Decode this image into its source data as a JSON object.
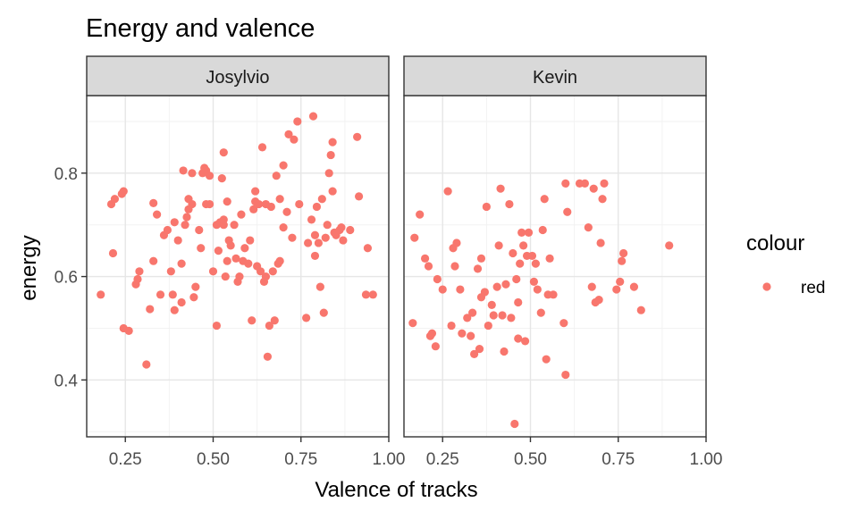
{
  "chart_data": {
    "type": "scatter",
    "title": "Energy and valence",
    "xlabel": "Valence of tracks",
    "ylabel": "energy",
    "xlim": [
      0.14,
      1.0
    ],
    "ylim": [
      0.29,
      0.95
    ],
    "x_ticks": [
      0.25,
      0.5,
      0.75,
      1.0
    ],
    "x_tick_labels": [
      "0.25",
      "0.50",
      "0.75",
      "1.00"
    ],
    "y_ticks": [
      0.4,
      0.6,
      0.8
    ],
    "y_tick_labels": [
      "0.4",
      "0.6",
      "0.8"
    ],
    "grid": true,
    "legend": {
      "title": "colour",
      "position": "right",
      "entries": [
        {
          "label": "red",
          "color": "#F8766D"
        }
      ]
    },
    "point_color": "#F8766D",
    "panels": [
      {
        "name": "Josylvio",
        "points": [
          [
            0.18,
            0.565
          ],
          [
            0.215,
            0.645
          ],
          [
            0.21,
            0.74
          ],
          [
            0.22,
            0.75
          ],
          [
            0.24,
            0.76
          ],
          [
            0.245,
            0.765
          ],
          [
            0.245,
            0.5
          ],
          [
            0.26,
            0.495
          ],
          [
            0.28,
            0.585
          ],
          [
            0.285,
            0.595
          ],
          [
            0.29,
            0.61
          ],
          [
            0.31,
            0.43
          ],
          [
            0.32,
            0.537
          ],
          [
            0.33,
            0.63
          ],
          [
            0.33,
            0.742
          ],
          [
            0.34,
            0.72
          ],
          [
            0.35,
            0.565
          ],
          [
            0.36,
            0.68
          ],
          [
            0.37,
            0.69
          ],
          [
            0.38,
            0.61
          ],
          [
            0.385,
            0.565
          ],
          [
            0.39,
            0.535
          ],
          [
            0.39,
            0.705
          ],
          [
            0.4,
            0.67
          ],
          [
            0.41,
            0.55
          ],
          [
            0.41,
            0.625
          ],
          [
            0.415,
            0.805
          ],
          [
            0.42,
            0.7
          ],
          [
            0.425,
            0.715
          ],
          [
            0.43,
            0.73
          ],
          [
            0.43,
            0.75
          ],
          [
            0.44,
            0.74
          ],
          [
            0.44,
            0.8
          ],
          [
            0.445,
            0.56
          ],
          [
            0.45,
            0.58
          ],
          [
            0.46,
            0.69
          ],
          [
            0.465,
            0.655
          ],
          [
            0.47,
            0.8
          ],
          [
            0.475,
            0.81
          ],
          [
            0.48,
            0.74
          ],
          [
            0.48,
            0.805
          ],
          [
            0.49,
            0.74
          ],
          [
            0.49,
            0.795
          ],
          [
            0.5,
            0.61
          ],
          [
            0.51,
            0.7
          ],
          [
            0.51,
            0.505
          ],
          [
            0.515,
            0.65
          ],
          [
            0.52,
            0.705
          ],
          [
            0.525,
            0.79
          ],
          [
            0.53,
            0.7
          ],
          [
            0.53,
            0.71
          ],
          [
            0.53,
            0.84
          ],
          [
            0.535,
            0.6
          ],
          [
            0.54,
            0.63
          ],
          [
            0.54,
            0.745
          ],
          [
            0.545,
            0.67
          ],
          [
            0.55,
            0.66
          ],
          [
            0.56,
            0.7
          ],
          [
            0.565,
            0.635
          ],
          [
            0.57,
            0.59
          ],
          [
            0.575,
            0.6
          ],
          [
            0.58,
            0.72
          ],
          [
            0.585,
            0.63
          ],
          [
            0.59,
            0.655
          ],
          [
            0.6,
            0.625
          ],
          [
            0.605,
            0.67
          ],
          [
            0.61,
            0.515
          ],
          [
            0.615,
            0.73
          ],
          [
            0.62,
            0.765
          ],
          [
            0.62,
            0.745
          ],
          [
            0.625,
            0.62
          ],
          [
            0.63,
            0.74
          ],
          [
            0.635,
            0.61
          ],
          [
            0.64,
            0.85
          ],
          [
            0.645,
            0.59
          ],
          [
            0.65,
            0.6
          ],
          [
            0.65,
            0.74
          ],
          [
            0.655,
            0.445
          ],
          [
            0.66,
            0.505
          ],
          [
            0.665,
            0.735
          ],
          [
            0.67,
            0.61
          ],
          [
            0.675,
            0.515
          ],
          [
            0.68,
            0.795
          ],
          [
            0.685,
            0.625
          ],
          [
            0.69,
            0.63
          ],
          [
            0.69,
            0.75
          ],
          [
            0.7,
            0.695
          ],
          [
            0.7,
            0.815
          ],
          [
            0.71,
            0.725
          ],
          [
            0.715,
            0.875
          ],
          [
            0.725,
            0.675
          ],
          [
            0.73,
            0.865
          ],
          [
            0.74,
            0.9
          ],
          [
            0.745,
            0.74
          ],
          [
            0.765,
            0.52
          ],
          [
            0.77,
            0.665
          ],
          [
            0.78,
            0.71
          ],
          [
            0.785,
            0.91
          ],
          [
            0.79,
            0.68
          ],
          [
            0.79,
            0.64
          ],
          [
            0.795,
            0.735
          ],
          [
            0.8,
            0.665
          ],
          [
            0.805,
            0.58
          ],
          [
            0.81,
            0.75
          ],
          [
            0.815,
            0.53
          ],
          [
            0.82,
            0.675
          ],
          [
            0.825,
            0.7
          ],
          [
            0.83,
            0.8
          ],
          [
            0.835,
            0.835
          ],
          [
            0.84,
            0.86
          ],
          [
            0.84,
            0.765
          ],
          [
            0.845,
            0.685
          ],
          [
            0.85,
            0.68
          ],
          [
            0.86,
            0.69
          ],
          [
            0.865,
            0.695
          ],
          [
            0.87,
            0.67
          ],
          [
            0.89,
            0.69
          ],
          [
            0.91,
            0.87
          ],
          [
            0.915,
            0.755
          ],
          [
            0.935,
            0.565
          ],
          [
            0.94,
            0.655
          ],
          [
            0.955,
            0.565
          ]
        ]
      },
      {
        "name": "Kevin",
        "points": [
          [
            0.165,
            0.51
          ],
          [
            0.17,
            0.675
          ],
          [
            0.185,
            0.72
          ],
          [
            0.2,
            0.635
          ],
          [
            0.21,
            0.62
          ],
          [
            0.215,
            0.485
          ],
          [
            0.22,
            0.49
          ],
          [
            0.23,
            0.465
          ],
          [
            0.235,
            0.595
          ],
          [
            0.25,
            0.575
          ],
          [
            0.265,
            0.765
          ],
          [
            0.275,
            0.505
          ],
          [
            0.28,
            0.655
          ],
          [
            0.285,
            0.62
          ],
          [
            0.29,
            0.665
          ],
          [
            0.3,
            0.575
          ],
          [
            0.305,
            0.49
          ],
          [
            0.32,
            0.52
          ],
          [
            0.33,
            0.485
          ],
          [
            0.335,
            0.53
          ],
          [
            0.34,
            0.45
          ],
          [
            0.35,
            0.615
          ],
          [
            0.355,
            0.46
          ],
          [
            0.36,
            0.635
          ],
          [
            0.36,
            0.56
          ],
          [
            0.37,
            0.57
          ],
          [
            0.375,
            0.735
          ],
          [
            0.38,
            0.505
          ],
          [
            0.39,
            0.545
          ],
          [
            0.395,
            0.525
          ],
          [
            0.405,
            0.58
          ],
          [
            0.41,
            0.66
          ],
          [
            0.415,
            0.77
          ],
          [
            0.42,
            0.525
          ],
          [
            0.425,
            0.455
          ],
          [
            0.43,
            0.585
          ],
          [
            0.44,
            0.74
          ],
          [
            0.445,
            0.52
          ],
          [
            0.45,
            0.645
          ],
          [
            0.455,
            0.315
          ],
          [
            0.46,
            0.595
          ],
          [
            0.465,
            0.48
          ],
          [
            0.465,
            0.55
          ],
          [
            0.47,
            0.625
          ],
          [
            0.475,
            0.685
          ],
          [
            0.48,
            0.66
          ],
          [
            0.485,
            0.475
          ],
          [
            0.49,
            0.64
          ],
          [
            0.495,
            0.685
          ],
          [
            0.505,
            0.64
          ],
          [
            0.51,
            0.59
          ],
          [
            0.515,
            0.625
          ],
          [
            0.52,
            0.575
          ],
          [
            0.53,
            0.53
          ],
          [
            0.535,
            0.69
          ],
          [
            0.54,
            0.75
          ],
          [
            0.545,
            0.44
          ],
          [
            0.55,
            0.565
          ],
          [
            0.555,
            0.635
          ],
          [
            0.565,
            0.565
          ],
          [
            0.595,
            0.51
          ],
          [
            0.6,
            0.41
          ],
          [
            0.6,
            0.78
          ],
          [
            0.605,
            0.725
          ],
          [
            0.64,
            0.78
          ],
          [
            0.655,
            0.78
          ],
          [
            0.665,
            0.695
          ],
          [
            0.675,
            0.58
          ],
          [
            0.68,
            0.77
          ],
          [
            0.685,
            0.55
          ],
          [
            0.695,
            0.555
          ],
          [
            0.7,
            0.665
          ],
          [
            0.705,
            0.75
          ],
          [
            0.71,
            0.78
          ],
          [
            0.745,
            0.575
          ],
          [
            0.755,
            0.59
          ],
          [
            0.76,
            0.63
          ],
          [
            0.765,
            0.645
          ],
          [
            0.795,
            0.58
          ],
          [
            0.815,
            0.535
          ],
          [
            0.895,
            0.66
          ]
        ]
      }
    ]
  }
}
